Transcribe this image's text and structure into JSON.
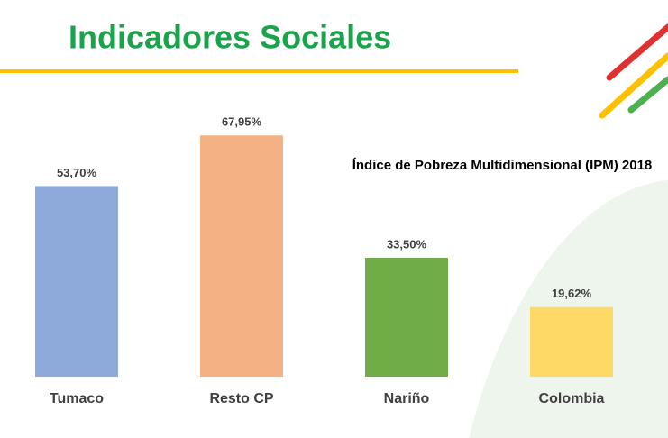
{
  "header": {
    "title": "Indicadores Sociales"
  },
  "chart_data": {
    "type": "bar",
    "title": "Índice de Pobreza Multidimensional (IPM) 2018",
    "categories": [
      "Tumaco",
      "Resto CP",
      "Nariño",
      "Colombia"
    ],
    "values": [
      53.7,
      67.95,
      33.5,
      19.62
    ],
    "value_labels": [
      "53,70%",
      "67,95%",
      "33,50%",
      "19,62%"
    ],
    "colors": [
      "#8eaadb",
      "#f4b183",
      "#70ad47",
      "#ffd966"
    ],
    "ylim": [
      0,
      100
    ]
  }
}
